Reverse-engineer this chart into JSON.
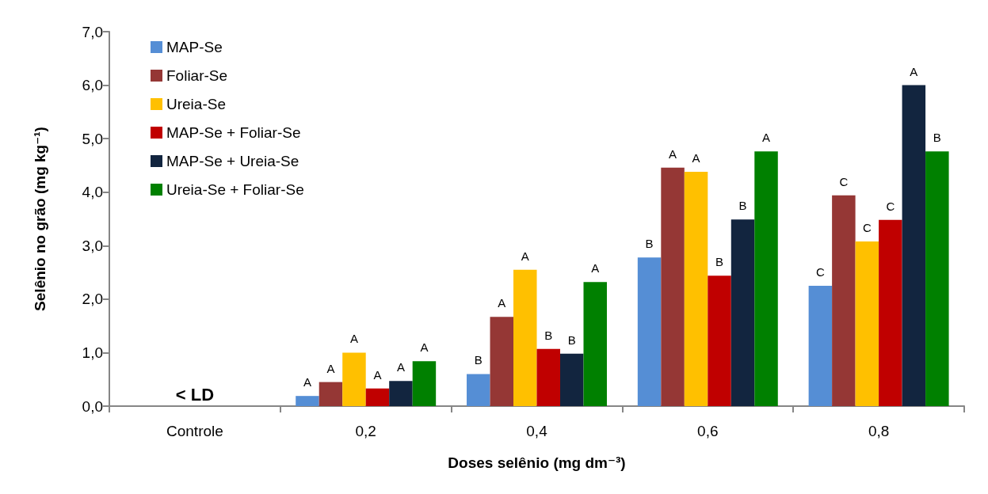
{
  "chart_data": {
    "type": "bar",
    "xlabel": "Doses selênio (mg dm⁻³)",
    "ylabel": "Selênio no grão (mg kg⁻¹)",
    "categories": [
      "Controle",
      "0,2",
      "0,4",
      "0,6",
      "0,8"
    ],
    "series": [
      {
        "name": "MAP-Se",
        "color": "#558ed5",
        "values": [
          null,
          0.19,
          0.6,
          2.78,
          2.25
        ],
        "value_labels": [
          null,
          "A",
          "B",
          "B",
          "C"
        ]
      },
      {
        "name": "Foliar-Se",
        "color": "#953735",
        "values": [
          null,
          0.45,
          1.67,
          4.46,
          3.94
        ],
        "value_labels": [
          null,
          "A",
          "A",
          "A",
          "C"
        ]
      },
      {
        "name": "Ureia-Se",
        "color": "#ffc000",
        "values": [
          null,
          1.0,
          2.55,
          4.38,
          3.08
        ],
        "value_labels": [
          null,
          "A",
          "A",
          "A",
          "C"
        ]
      },
      {
        "name": "MAP-Se + Foliar-Se",
        "color": "#c00000",
        "values": [
          null,
          0.33,
          1.07,
          2.44,
          3.48
        ],
        "value_labels": [
          null,
          "A",
          "B",
          "B",
          "C"
        ]
      },
      {
        "name": "MAP-Se + Ureia-Se",
        "color": "#12253f",
        "values": [
          null,
          0.47,
          0.98,
          3.49,
          6.0
        ],
        "value_labels": [
          null,
          "A",
          "B",
          "B",
          "A"
        ]
      },
      {
        "name": "Ureia-Se + Foliar-Se",
        "color": "#008000",
        "values": [
          null,
          0.84,
          2.32,
          4.76,
          4.76
        ],
        "value_labels": [
          null,
          "A",
          "A",
          "A",
          "B"
        ]
      }
    ],
    "annotations": [
      "< LD"
    ],
    "ylim": [
      0,
      7
    ],
    "yticks": [
      {
        "value": 0,
        "label": "0,0"
      },
      {
        "value": 1,
        "label": "1,0"
      },
      {
        "value": 2,
        "label": "2,0"
      },
      {
        "value": 3,
        "label": "3,0"
      },
      {
        "value": 4,
        "label": "4,0"
      },
      {
        "value": 5,
        "label": "5,0"
      },
      {
        "value": 6,
        "label": "6,0"
      },
      {
        "value": 7,
        "label": "7,0"
      }
    ],
    "grid": false,
    "legend": "top left"
  }
}
